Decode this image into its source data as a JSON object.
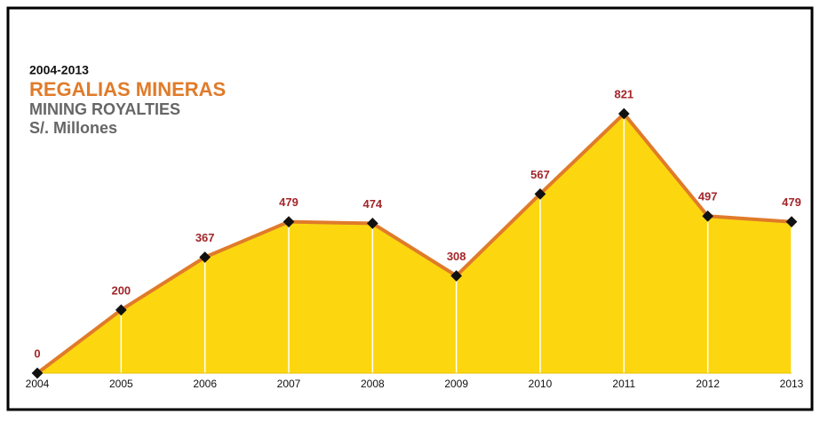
{
  "chart_data": {
    "type": "area",
    "period": "2004-2013",
    "title": "REGALIAS MINERAS",
    "subtitle": "MINING ROYALTIES",
    "unit": "S/. Millones",
    "categories": [
      "2004",
      "2005",
      "2006",
      "2007",
      "2008",
      "2009",
      "2010",
      "2011",
      "2012",
      "2013"
    ],
    "values": [
      0,
      200,
      367,
      479,
      474,
      308,
      567,
      821,
      497,
      479
    ],
    "color": "#fcd70f",
    "line_color": "#e07b2a",
    "marker_color": "#111111",
    "label_color": "#a3262a"
  }
}
